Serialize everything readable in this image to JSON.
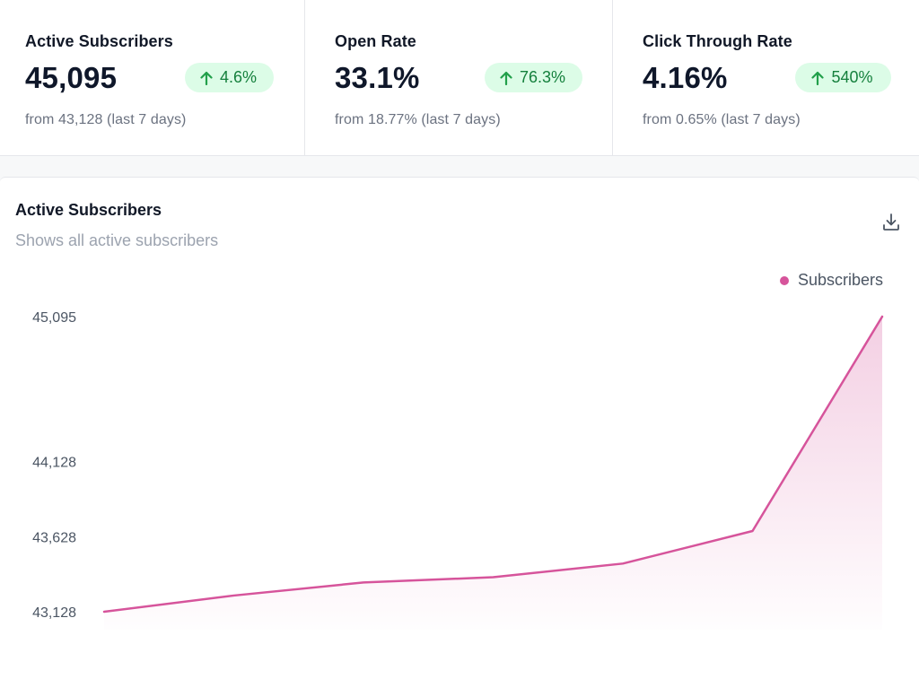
{
  "stats": [
    {
      "label": "Active Subscribers",
      "value": "45,095",
      "change": "4.6%",
      "sub": "from 43,128 (last 7 days)",
      "trend": "up"
    },
    {
      "label": "Open Rate",
      "value": "33.1%",
      "change": "76.3%",
      "sub": "from 18.77% (last 7 days)",
      "trend": "up"
    },
    {
      "label": "Click Through Rate",
      "value": "4.16%",
      "change": "540%",
      "sub": "from 0.65% (last 7 days)",
      "trend": "up"
    }
  ],
  "card": {
    "title": "Active Subscribers",
    "subtitle": "Shows all active subscribers",
    "download_icon": "download-icon"
  },
  "colors": {
    "accent": "#d6549b",
    "badge_bg": "#dcfce7",
    "badge_text": "#15803d"
  },
  "chart_data": {
    "type": "area",
    "title": "",
    "xlabel": "",
    "ylabel": "",
    "legend_position": "top-right",
    "grid": false,
    "ylim": [
      43128,
      45095
    ],
    "yticks": [
      43128,
      43628,
      44128,
      45095
    ],
    "ytick_labels": [
      "43,128",
      "43,628",
      "44,128",
      "45,095"
    ],
    "series": [
      {
        "name": "Subscribers",
        "values": [
          43128,
          43236,
          43323,
          43358,
          43449,
          43666,
          45095
        ]
      }
    ]
  }
}
